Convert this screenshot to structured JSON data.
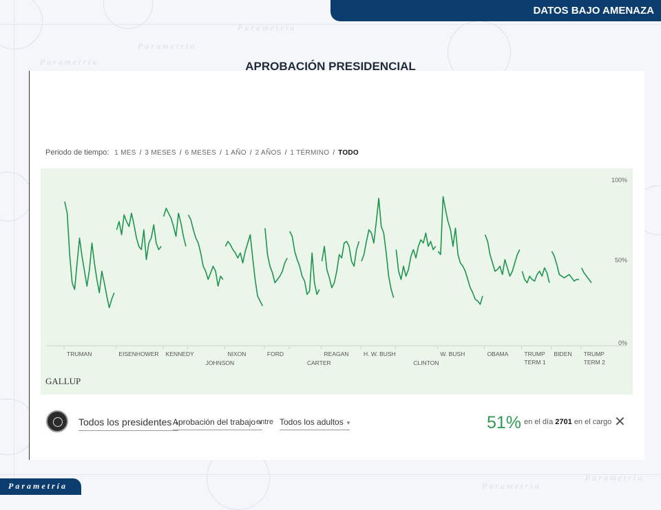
{
  "header": {
    "banner": "DATOS BAJO AMENAZA",
    "title": "APROBACIÓN PRESIDENCIAL"
  },
  "brand": {
    "footer_logo": "Parametría"
  },
  "filters": {
    "label": "Periodo de tiempo:",
    "options": [
      "1 MES",
      "3 MESES",
      "6 MESES",
      "1 AÑO",
      "2 AÑOS",
      "1 TÉRMINO",
      "TODO"
    ],
    "active": "TODO"
  },
  "source": "GALLUP",
  "controls": {
    "president_select": "Todos los presidentes",
    "metric_select": "Aprobación del trabajo",
    "connector": "entre",
    "population_select": "Todos los adultos",
    "current_value": "51%",
    "day_prefix": "en el día",
    "day_number": "2701",
    "day_suffix": "en el cargo",
    "close_symbol": "✕"
  },
  "colors": {
    "line": "#1f9450",
    "panel_bg": "#ebf5ea",
    "brand_blue": "#0b3d6e"
  },
  "chart_data": {
    "type": "line",
    "title": "",
    "xlabel": "",
    "ylabel": "",
    "ylim": [
      0,
      100
    ],
    "yticks": [
      "0%",
      "50%",
      "100%"
    ],
    "grid": false,
    "series": [
      {
        "name": "TRUMAN",
        "values": [
          87,
          80,
          55,
          38,
          34,
          50,
          65,
          54,
          45,
          36,
          46,
          62,
          50,
          40,
          32,
          45,
          38,
          30,
          23,
          28,
          32
        ]
      },
      {
        "name": "EISENHOWER",
        "values": [
          70,
          75,
          67,
          79,
          75,
          72,
          80,
          73,
          65,
          60,
          58,
          70,
          52,
          62,
          65,
          73,
          62,
          58,
          60
        ]
      },
      {
        "name": "KENNEDY",
        "values": [
          78,
          83,
          80,
          77,
          72,
          66,
          80,
          74,
          66,
          60
        ]
      },
      {
        "name": "JOHNSON",
        "values": [
          79,
          76,
          70,
          65,
          62,
          56,
          48,
          45,
          40,
          44,
          48,
          45,
          36,
          42,
          40
        ]
      },
      {
        "name": "NIXON",
        "values": [
          60,
          63,
          61,
          58,
          56,
          53,
          56,
          50,
          57,
          62,
          67,
          53,
          40,
          30,
          27,
          24
        ]
      },
      {
        "name": "FORD",
        "values": [
          71,
          55,
          48,
          44,
          38,
          40,
          42,
          45,
          50,
          53
        ]
      },
      {
        "name": "CARTER",
        "values": [
          69,
          66,
          57,
          52,
          48,
          42,
          39,
          31,
          33,
          56,
          38,
          31,
          34
        ]
      },
      {
        "name": "REAGAN",
        "values": [
          51,
          60,
          46,
          41,
          35,
          38,
          45,
          55,
          53,
          62,
          63,
          60,
          51,
          48,
          58,
          63
        ]
      },
      {
        "name": "H. W. BUSH",
        "values": [
          51,
          55,
          63,
          70,
          68,
          62,
          75,
          89,
          72,
          68,
          56,
          42,
          34,
          29
        ]
      },
      {
        "name": "CLINTON",
        "values": [
          58,
          45,
          40,
          48,
          42,
          46,
          54,
          58,
          53,
          60,
          64,
          62,
          68,
          60,
          63,
          58,
          60
        ]
      },
      {
        "name": "W. BUSH",
        "values": [
          57,
          55,
          90,
          82,
          75,
          70,
          60,
          71,
          55,
          50,
          48,
          45,
          40,
          35,
          32,
          28,
          27,
          25,
          30
        ]
      },
      {
        "name": "OBAMA",
        "values": [
          67,
          63,
          55,
          50,
          45,
          46,
          48,
          43,
          52,
          47,
          42,
          45,
          50,
          55,
          58
        ]
      },
      {
        "name": "TRUMP TERM 1",
        "values": [
          45,
          40,
          38,
          42,
          40,
          39,
          43,
          45,
          42,
          47,
          44,
          38
        ]
      },
      {
        "name": "BIDEN",
        "values": [
          57,
          54,
          49,
          43,
          42,
          41,
          42,
          43,
          41,
          39,
          40,
          40
        ]
      },
      {
        "name": "TRUMP TERM 2",
        "values": [
          47,
          44,
          42,
          40,
          38
        ]
      }
    ],
    "x_labels": [
      {
        "text": "TRUMAN",
        "row": 1
      },
      {
        "text": "EISENHOWER",
        "row": 1
      },
      {
        "text": "KENNEDY",
        "row": 1
      },
      {
        "text": "JOHNSON",
        "row": 2
      },
      {
        "text": "NIXON",
        "row": 1
      },
      {
        "text": "FORD",
        "row": 1
      },
      {
        "text": "CARTER",
        "row": 2
      },
      {
        "text": "REAGAN",
        "row": 1
      },
      {
        "text": "H. W. BUSH",
        "row": 1
      },
      {
        "text": "CLINTON",
        "row": 2
      },
      {
        "text": "W. BUSH",
        "row": 1
      },
      {
        "text": "OBAMA",
        "row": 1
      },
      {
        "text": "TRUMP|TERM 1",
        "row": 1
      },
      {
        "text": "BIDEN",
        "row": 1
      },
      {
        "text": "TRUMP|TERM 2",
        "row": 1
      }
    ]
  }
}
